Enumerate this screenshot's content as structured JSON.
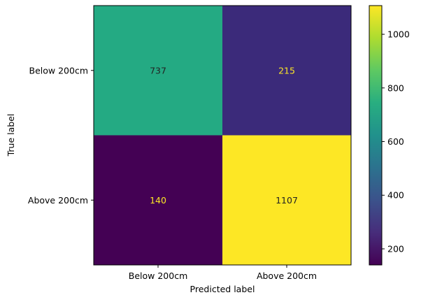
{
  "chart_data": {
    "type": "heatmap",
    "title": "",
    "xlabel": "Predicted label",
    "ylabel": "True label",
    "x_categories": [
      "Below 200cm",
      "Above 200cm"
    ],
    "y_categories": [
      "Below 200cm",
      "Above 200cm"
    ],
    "values": [
      [
        737,
        215
      ],
      [
        140,
        1107
      ]
    ],
    "colormap": "viridis",
    "colorbar": {
      "range": [
        140,
        1107
      ],
      "ticks": [
        200,
        400,
        600,
        800,
        1000
      ],
      "tick_labels": [
        "200",
        "400",
        "600",
        "800",
        "1000"
      ]
    },
    "cell_colors": [
      [
        "#24aa83",
        "#3b2a7a"
      ],
      [
        "#440154",
        "#fde725"
      ]
    ],
    "text_colors": [
      [
        "#222222",
        "#fde725"
      ],
      [
        "#fde725",
        "#222222"
      ]
    ],
    "grid": false
  }
}
